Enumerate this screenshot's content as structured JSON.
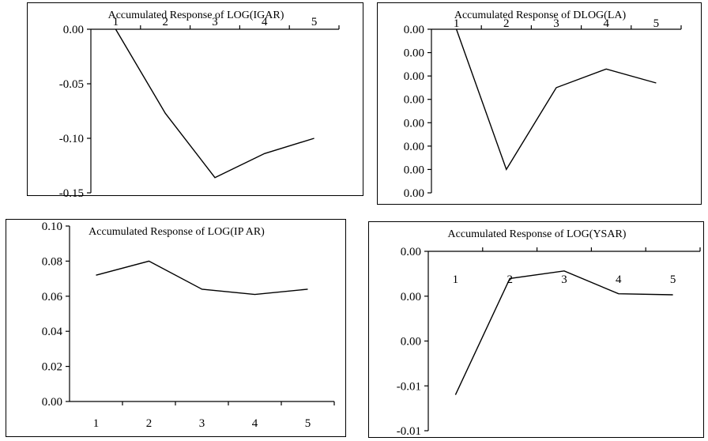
{
  "chart_data": [
    {
      "type": "line",
      "title": "Accumulated Response of LOG(IGAR)",
      "x": [
        1,
        2,
        3,
        4,
        5
      ],
      "values": [
        0.0,
        -0.077,
        -0.136,
        -0.114,
        -0.1
      ],
      "ylim": [
        -0.15,
        0.0
      ],
      "yticks": [
        "0.00",
        "-0.05",
        "-0.10",
        "-0.15"
      ],
      "xticks": [
        "1",
        "2",
        "3",
        "4",
        "5"
      ],
      "x_axis_position": "top"
    },
    {
      "type": "line",
      "title": "Accumulated Response of DLOG(LA)",
      "x": [
        1,
        2,
        3,
        4,
        5
      ],
      "values": [
        0.0,
        -0.006,
        -0.0025,
        -0.0017,
        -0.0023
      ],
      "ylim": [
        -0.007,
        0.0
      ],
      "yticks": [
        "0.00",
        "0.00",
        "0.00",
        "0.00",
        "0.00",
        "0.00",
        "0.00",
        "0.00"
      ],
      "xticks": [
        "1",
        "2",
        "3",
        "4",
        "5"
      ],
      "x_axis_position": "top"
    },
    {
      "type": "line",
      "title": "Accumulated Response of LOG(IP AR)",
      "x": [
        1,
        2,
        3,
        4,
        5
      ],
      "values": [
        0.072,
        0.08,
        0.064,
        0.061,
        0.064
      ],
      "ylim": [
        0.0,
        0.1
      ],
      "yticks": [
        "0.10",
        "0.08",
        "0.06",
        "0.04",
        "0.02",
        "0.00"
      ],
      "xticks": [
        "1",
        "2",
        "3",
        "4",
        "5"
      ],
      "x_axis_position": "bottom"
    },
    {
      "type": "line",
      "title": "Accumulated Response of LOG(YSAR)",
      "x": [
        1,
        2,
        3,
        4,
        5
      ],
      "values": [
        -0.0122,
        -0.0015,
        -0.0008,
        -0.0029,
        -0.003
      ],
      "ylim": [
        -0.0155,
        0.001
      ],
      "yticks": [
        "0.00",
        "0.00",
        "0.00",
        "-0.01",
        "-0.01"
      ],
      "xticks": [
        "1",
        "2",
        "3",
        "4",
        "5"
      ],
      "x_axis_position": "top"
    }
  ]
}
